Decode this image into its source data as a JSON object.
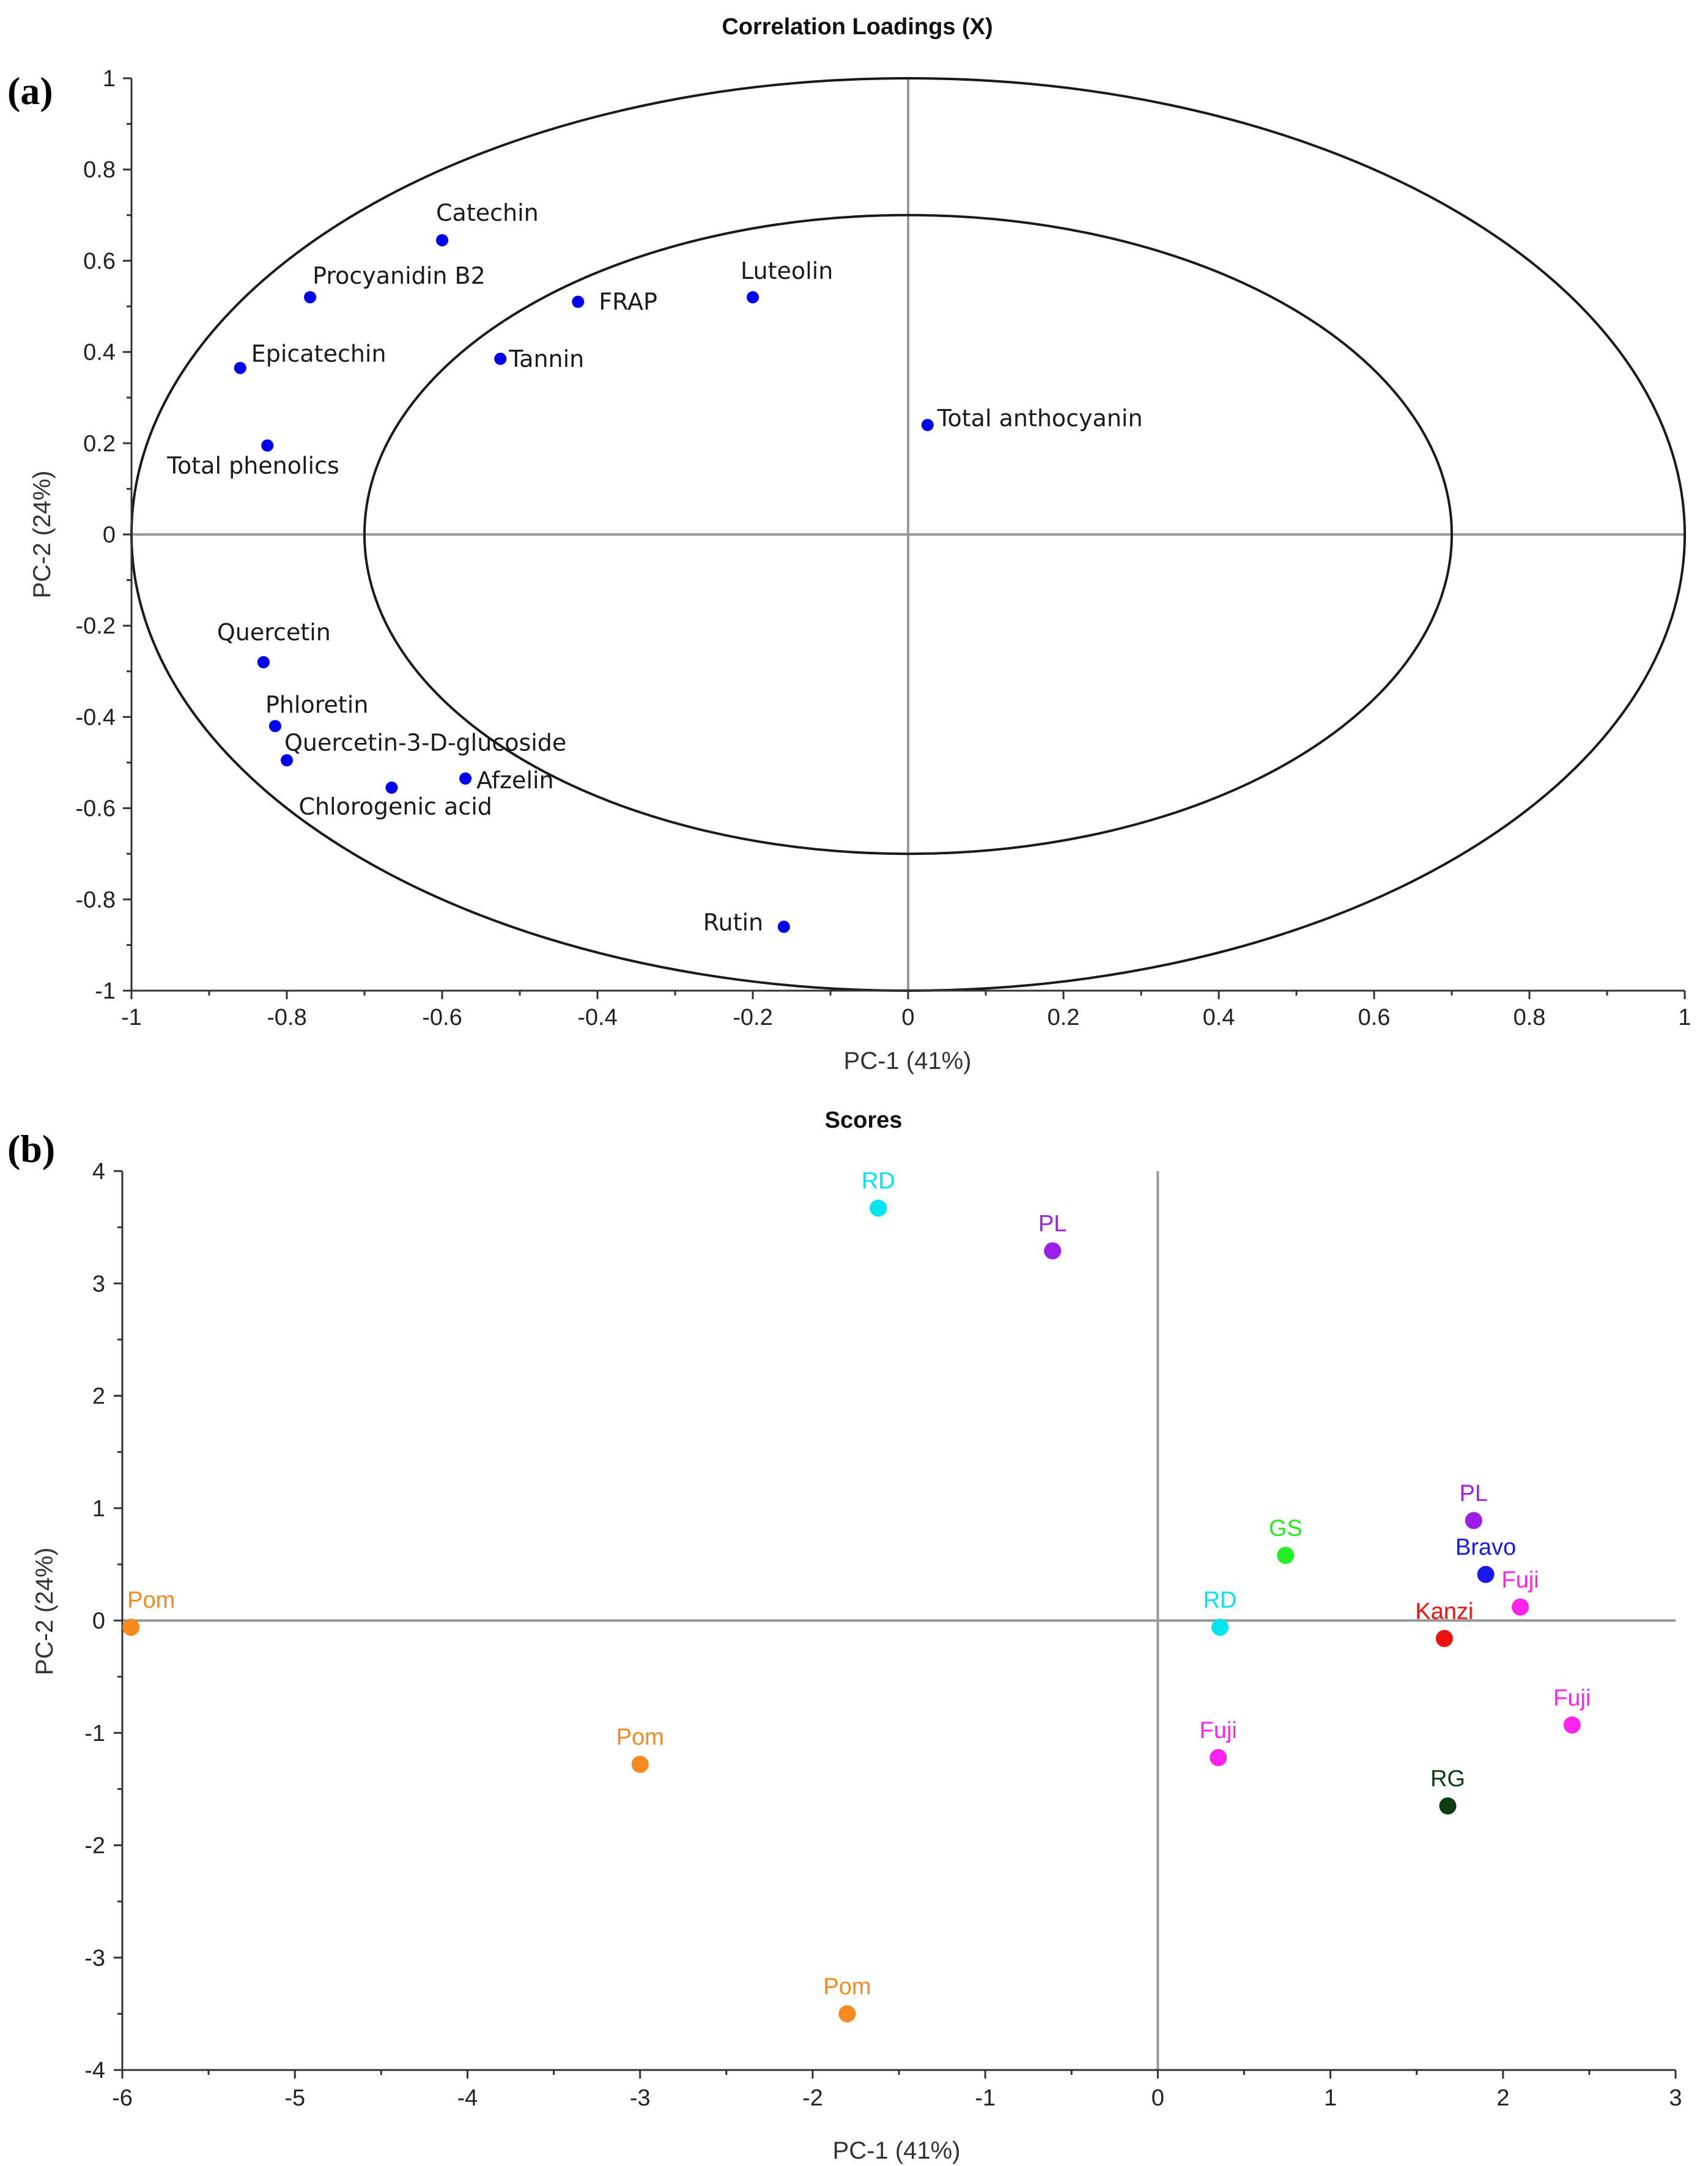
{
  "chart_data": [
    {
      "id": "a",
      "type": "scatter",
      "panel_label": "(a)",
      "title": "Correlation Loadings (X)",
      "xlabel": "PC-1 (41%)",
      "ylabel": "PC-2 (24%)",
      "xlim": [
        -1,
        1
      ],
      "ylim": [
        -1,
        1
      ],
      "xticks": [
        -1,
        -0.8,
        -0.6,
        -0.4,
        -0.2,
        0,
        0.2,
        0.4,
        0.6,
        0.8,
        1
      ],
      "yticks": [
        -1,
        -0.8,
        -0.6,
        -0.4,
        -0.2,
        0,
        0.2,
        0.4,
        0.6,
        0.8,
        1
      ],
      "xtick_labels": [
        "-1",
        "-0.8",
        "-0.6",
        "-0.4",
        "-0.2",
        "0",
        "0.2",
        "0.4",
        "0.6",
        "0.8",
        "1"
      ],
      "ytick_labels": [
        "-1",
        "-0.8",
        "-0.6",
        "-0.4",
        "-0.2",
        "0",
        "0.2",
        "0.4",
        "0.6",
        "0.8",
        "1"
      ],
      "reference_ellipses": [
        1.0,
        0.7
      ],
      "point_color": "#0000ee",
      "points": [
        {
          "label": "Catechin",
          "x": -0.6,
          "y": 0.645
        },
        {
          "label": "Procyanidin B2",
          "x": -0.77,
          "y": 0.52
        },
        {
          "label": "FRAP",
          "x": -0.425,
          "y": 0.51
        },
        {
          "label": "Luteolin",
          "x": -0.2,
          "y": 0.52
        },
        {
          "label": "Epicatechin",
          "x": -0.86,
          "y": 0.365
        },
        {
          "label": "Tannin",
          "x": -0.525,
          "y": 0.385
        },
        {
          "label": "Total anthocyanin",
          "x": 0.025,
          "y": 0.24
        },
        {
          "label": "Total phenolics",
          "x": -0.825,
          "y": 0.195
        },
        {
          "label": "Quercetin",
          "x": -0.83,
          "y": -0.28
        },
        {
          "label": "Phloretin",
          "x": -0.815,
          "y": -0.42
        },
        {
          "label": "Quercetin-3-D-glucoside",
          "x": -0.8,
          "y": -0.495
        },
        {
          "label": "Afzelin",
          "x": -0.57,
          "y": -0.535
        },
        {
          "label": "Chlorogenic acid",
          "x": -0.665,
          "y": -0.555
        },
        {
          "label": "Rutin",
          "x": -0.16,
          "y": -0.86
        }
      ]
    },
    {
      "id": "b",
      "type": "scatter",
      "panel_label": "(b)",
      "title": "Scores",
      "xlabel": "PC-1 (41%)",
      "ylabel": "PC-2 (24%)",
      "xlim": [
        -6,
        3
      ],
      "ylim": [
        -4,
        4
      ],
      "xticks": [
        -6,
        -5,
        -4,
        -3,
        -2,
        -1,
        0,
        1,
        2,
        3
      ],
      "yticks": [
        -4,
        -3,
        -2,
        -1,
        0,
        1,
        2,
        3,
        4
      ],
      "xtick_labels": [
        "-6",
        "-5",
        "-4",
        "-3",
        "-2",
        "-1",
        "0",
        "1",
        "2",
        "3"
      ],
      "ytick_labels": [
        "-4",
        "-3",
        "-2",
        "-1",
        "0",
        "1",
        "2",
        "3",
        "4"
      ],
      "points": [
        {
          "label": "Pom",
          "x": -5.95,
          "y": -0.06,
          "color": "#f58a1e"
        },
        {
          "label": "Pom",
          "x": -3.0,
          "y": -1.28,
          "color": "#f58a1e"
        },
        {
          "label": "Pom",
          "x": -1.8,
          "y": -3.5,
          "color": "#f58a1e"
        },
        {
          "label": "RD",
          "x": -1.62,
          "y": 3.67,
          "color": "#00e5ee"
        },
        {
          "label": "RD",
          "x": 0.36,
          "y": -0.06,
          "color": "#00e5ee"
        },
        {
          "label": "PL",
          "x": -0.61,
          "y": 3.29,
          "color": "#9b1fe8"
        },
        {
          "label": "PL",
          "x": 1.83,
          "y": 0.89,
          "color": "#9b1fe8"
        },
        {
          "label": "GS",
          "x": 0.74,
          "y": 0.58,
          "color": "#22ee22"
        },
        {
          "label": "Bravo",
          "x": 1.9,
          "y": 0.41,
          "color": "#1a1aee"
        },
        {
          "label": "Fuji",
          "x": 2.1,
          "y": 0.12,
          "color": "#ff22ee"
        },
        {
          "label": "Fuji",
          "x": 2.4,
          "y": -0.93,
          "color": "#ff22ee"
        },
        {
          "label": "Fuji",
          "x": 0.35,
          "y": -1.22,
          "color": "#ff22ee"
        },
        {
          "label": "Kanzi",
          "x": 1.66,
          "y": -0.16,
          "color": "#ee1111"
        },
        {
          "label": "RG",
          "x": 1.68,
          "y": -1.65,
          "color": "#0d3d12"
        }
      ]
    }
  ]
}
